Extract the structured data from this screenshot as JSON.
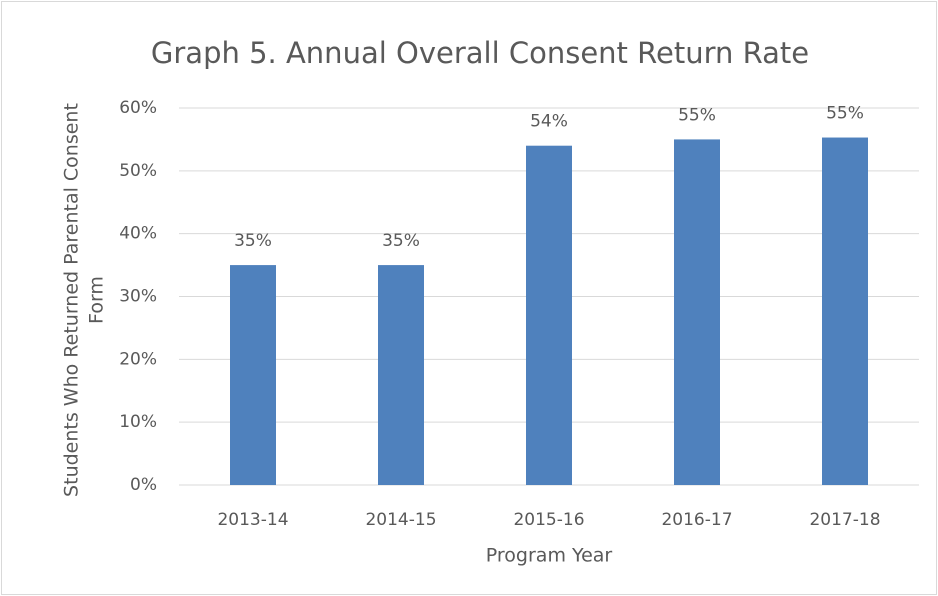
{
  "chart_data": {
    "type": "bar",
    "title": "Graph 5. Annual Overall Consent Return Rate",
    "categories": [
      "2013-14",
      "2014-15",
      "2015-16",
      "2016-17",
      "2017-18"
    ],
    "values": [
      35,
      35,
      54,
      55,
      55.3
    ],
    "value_labels": [
      "35%",
      "35%",
      "54%",
      "55%",
      "55%"
    ],
    "color": "#4f81bd",
    "xlabel": "Program Year",
    "ylabel": [
      "Students Who Returned Parental Consent",
      "Form"
    ],
    "ylim": [
      0,
      60
    ],
    "yticks": [
      {
        "value": 0,
        "label": "0%"
      },
      {
        "value": 10,
        "label": "10%"
      },
      {
        "value": 20,
        "label": "20%"
      },
      {
        "value": 30,
        "label": "30%"
      },
      {
        "value": 40,
        "label": "40%"
      },
      {
        "value": 50,
        "label": "50%"
      },
      {
        "value": 60,
        "label": "60%"
      }
    ],
    "grid": true
  }
}
